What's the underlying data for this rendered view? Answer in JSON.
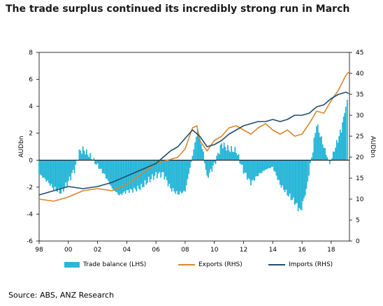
{
  "title": "The trade surplus continued its incredibly strong run in March",
  "source": "Source: ABS, ANZ Research",
  "colors": {
    "bars": "#29b6d8",
    "exports": "#d9862b",
    "imports": "#1f4e6e"
  },
  "chart_data": {
    "type": "bar+line",
    "title": "The trade surplus continued its incredibly strong run in March",
    "left_axis": {
      "label": "AUDbn",
      "ylim": [
        -6,
        8
      ],
      "ticks": [
        "-6",
        "-4",
        "-2",
        "0",
        "2",
        "4",
        "6",
        "8"
      ]
    },
    "right_axis": {
      "label": "AUDbn",
      "ylim": [
        0,
        45
      ],
      "ticks": [
        "0",
        "5",
        "10",
        "15",
        "20",
        "25",
        "30",
        "35",
        "40",
        "45"
      ]
    },
    "x_axis": {
      "xlim": [
        1998,
        2019.25
      ],
      "tick_values": [
        1998,
        2000,
        2002,
        2004,
        2006,
        2008,
        2010,
        2012,
        2014,
        2016,
        2018
      ],
      "tick_labels": [
        "98",
        "00",
        "02",
        "04",
        "06",
        "08",
        "10",
        "12",
        "14",
        "16",
        "18"
      ]
    },
    "legend": [
      "Trade balance (LHS)",
      "Exports (RHS)",
      "Imports (RHS)"
    ],
    "legend_placement": "bottom",
    "series": [
      {
        "name": "Trade balance (LHS)",
        "type": "bar",
        "axis": "left",
        "points": [
          [
            1998.0,
            -1.0
          ],
          [
            1998.5,
            -1.5
          ],
          [
            1999.0,
            -2.1
          ],
          [
            1999.5,
            -2.4
          ],
          [
            2000.0,
            -1.6
          ],
          [
            2000.5,
            -0.5
          ],
          [
            2000.75,
            0.6
          ],
          [
            2001.0,
            0.8
          ],
          [
            2001.5,
            0.3
          ],
          [
            2002.0,
            -0.4
          ],
          [
            2002.5,
            -1.1
          ],
          [
            2003.0,
            -2.1
          ],
          [
            2003.5,
            -2.6
          ],
          [
            2004.0,
            -2.3
          ],
          [
            2004.5,
            -2.2
          ],
          [
            2005.0,
            -2.0
          ],
          [
            2005.5,
            -1.5
          ],
          [
            2006.0,
            -1.1
          ],
          [
            2006.5,
            -1.0
          ],
          [
            2007.0,
            -2.1
          ],
          [
            2007.5,
            -2.5
          ],
          [
            2008.0,
            -2.3
          ],
          [
            2008.5,
            0.3
          ],
          [
            2008.85,
            2.3
          ],
          [
            2009.25,
            0.5
          ],
          [
            2009.5,
            -1.3
          ],
          [
            2010.0,
            -0.3
          ],
          [
            2010.5,
            1.2
          ],
          [
            2011.0,
            0.8
          ],
          [
            2011.5,
            0.7
          ],
          [
            2012.0,
            -0.8
          ],
          [
            2012.5,
            -1.7
          ],
          [
            2013.0,
            -1.1
          ],
          [
            2013.5,
            -0.7
          ],
          [
            2014.0,
            -0.5
          ],
          [
            2014.5,
            -1.8
          ],
          [
            2015.0,
            -2.5
          ],
          [
            2015.5,
            -3.1
          ],
          [
            2015.9,
            -3.8
          ],
          [
            2016.3,
            -2.2
          ],
          [
            2016.75,
            0.8
          ],
          [
            2017.0,
            2.7
          ],
          [
            2017.5,
            1.0
          ],
          [
            2017.9,
            -0.3
          ],
          [
            2018.3,
            1.0
          ],
          [
            2018.7,
            2.3
          ],
          [
            2019.0,
            4.0
          ],
          [
            2019.2,
            4.9
          ]
        ]
      },
      {
        "name": "Exports (RHS)",
        "type": "line",
        "axis": "right",
        "points": [
          [
            1998.0,
            10.0
          ],
          [
            1999.0,
            9.5
          ],
          [
            2000.0,
            10.5
          ],
          [
            2001.0,
            12.0
          ],
          [
            2002.0,
            12.5
          ],
          [
            2003.0,
            12.0
          ],
          [
            2004.0,
            13.5
          ],
          [
            2005.0,
            16.0
          ],
          [
            2006.0,
            18.5
          ],
          [
            2007.0,
            19.5
          ],
          [
            2007.5,
            20.0
          ],
          [
            2008.0,
            22.0
          ],
          [
            2008.5,
            27.0
          ],
          [
            2008.8,
            27.5
          ],
          [
            2009.0,
            24.0
          ],
          [
            2009.5,
            21.5
          ],
          [
            2010.0,
            24.0
          ],
          [
            2010.5,
            25.0
          ],
          [
            2011.0,
            27.0
          ],
          [
            2011.5,
            27.5
          ],
          [
            2012.0,
            26.5
          ],
          [
            2012.5,
            25.5
          ],
          [
            2013.0,
            27.0
          ],
          [
            2013.5,
            28.0
          ],
          [
            2014.0,
            26.5
          ],
          [
            2014.5,
            25.5
          ],
          [
            2015.0,
            26.5
          ],
          [
            2015.5,
            25.0
          ],
          [
            2016.0,
            25.5
          ],
          [
            2016.5,
            28.0
          ],
          [
            2017.0,
            31.0
          ],
          [
            2017.5,
            30.5
          ],
          [
            2018.0,
            33.5
          ],
          [
            2018.5,
            36.0
          ],
          [
            2019.0,
            39.5
          ],
          [
            2019.2,
            40.3
          ]
        ]
      },
      {
        "name": "Imports (RHS)",
        "type": "line",
        "axis": "right",
        "points": [
          [
            1998.0,
            11.0
          ],
          [
            1999.0,
            12.0
          ],
          [
            2000.0,
            13.0
          ],
          [
            2001.0,
            12.5
          ],
          [
            2002.0,
            13.0
          ],
          [
            2003.0,
            14.0
          ],
          [
            2004.0,
            15.5
          ],
          [
            2005.0,
            17.0
          ],
          [
            2006.0,
            18.5
          ],
          [
            2007.0,
            21.5
          ],
          [
            2007.5,
            22.5
          ],
          [
            2008.0,
            24.5
          ],
          [
            2008.5,
            26.5
          ],
          [
            2009.0,
            25.0
          ],
          [
            2009.5,
            22.5
          ],
          [
            2010.0,
            23.0
          ],
          [
            2010.5,
            24.0
          ],
          [
            2011.0,
            25.5
          ],
          [
            2011.5,
            26.5
          ],
          [
            2012.0,
            27.5
          ],
          [
            2012.5,
            28.0
          ],
          [
            2013.0,
            28.5
          ],
          [
            2013.5,
            28.5
          ],
          [
            2014.0,
            29.0
          ],
          [
            2014.5,
            28.5
          ],
          [
            2015.0,
            29.0
          ],
          [
            2015.5,
            30.0
          ],
          [
            2016.0,
            30.0
          ],
          [
            2016.5,
            30.5
          ],
          [
            2017.0,
            32.0
          ],
          [
            2017.5,
            32.5
          ],
          [
            2018.0,
            34.0
          ],
          [
            2018.5,
            35.0
          ],
          [
            2019.0,
            35.5
          ],
          [
            2019.2,
            35.2
          ]
        ]
      }
    ]
  }
}
